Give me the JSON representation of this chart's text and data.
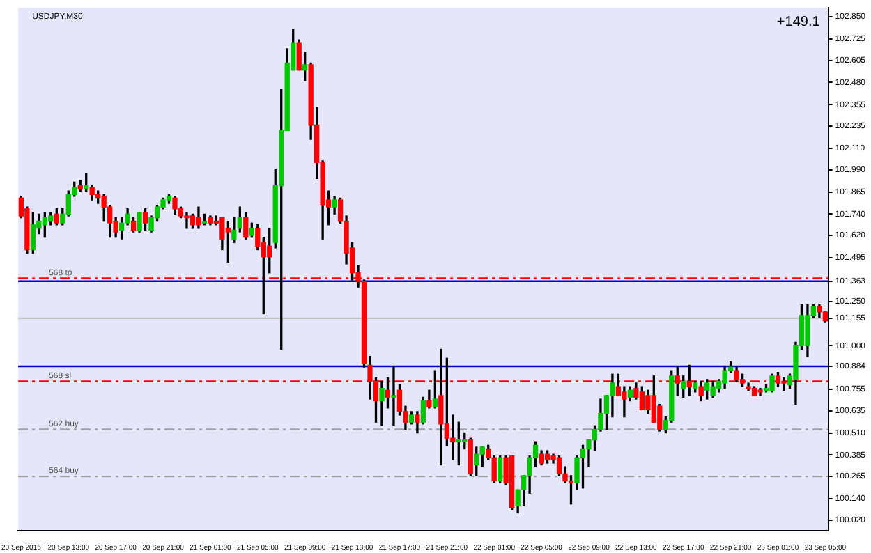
{
  "chart_data": {
    "type": "candlestick",
    "title": "USDJPY,M30",
    "annotations": [
      "+149.1"
    ],
    "categories": [
      "20 Sep 2016",
      null,
      null,
      null,
      null,
      null,
      null,
      null,
      "20 Sep 13:00",
      null,
      null,
      null,
      null,
      null,
      null,
      null,
      "20 Sep 17:00",
      null,
      null,
      null,
      null,
      null,
      null,
      null,
      "20 Sep 21:00",
      null,
      null,
      null,
      null,
      null,
      null,
      null,
      "21 Sep 01:00",
      null,
      null,
      null,
      null,
      null,
      null,
      null,
      "21 Sep 05:00",
      null,
      null,
      null,
      null,
      null,
      null,
      null,
      "21 Sep 09:00",
      null,
      null,
      null,
      null,
      null,
      null,
      null,
      "21 Sep 13:00",
      null,
      null,
      null,
      null,
      null,
      null,
      null,
      "21 Sep 17:00",
      null,
      null,
      null,
      null,
      null,
      null,
      null,
      "21 Sep 21:00",
      null,
      null,
      null,
      null,
      null,
      null,
      null,
      "22 Sep 01:00",
      null,
      null,
      null,
      null,
      null,
      null,
      null,
      "22 Sep 05:00",
      null,
      null,
      null,
      null,
      null,
      null,
      null,
      "22 Sep 09:00",
      null,
      null,
      null,
      null,
      null,
      null,
      null,
      "22 Sep 13:00",
      null,
      null,
      null,
      null,
      null,
      null,
      null,
      "22 Sep 17:00",
      null,
      null,
      null,
      null,
      null,
      null,
      null,
      "22 Sep 21:00",
      null,
      null,
      null,
      null,
      null,
      null,
      null,
      "23 Sep 01:00",
      null,
      null,
      null,
      null,
      null,
      null,
      null,
      "23 Sep 05:00"
    ],
    "ohlc": [
      [
        101.83,
        101.84,
        101.72,
        101.73
      ],
      [
        101.77,
        101.78,
        101.52,
        101.54
      ],
      [
        101.54,
        101.75,
        101.52,
        101.68
      ],
      [
        101.66,
        101.74,
        101.63,
        101.7
      ],
      [
        101.68,
        101.75,
        101.61,
        101.72
      ],
      [
        101.7,
        101.75,
        101.68,
        101.73
      ],
      [
        101.74,
        101.77,
        101.68,
        101.69
      ],
      [
        101.69,
        101.77,
        101.68,
        101.74
      ],
      [
        101.74,
        101.87,
        101.73,
        101.85
      ],
      [
        101.85,
        101.92,
        101.84,
        101.89
      ],
      [
        101.9,
        101.93,
        101.87,
        101.88
      ],
      [
        101.88,
        101.97,
        101.87,
        101.9
      ],
      [
        101.89,
        101.9,
        101.82,
        101.85
      ],
      [
        101.85,
        101.87,
        101.8,
        101.83
      ],
      [
        101.84,
        101.85,
        101.7,
        101.78
      ],
      [
        101.78,
        101.79,
        101.61,
        101.69
      ],
      [
        101.7,
        101.72,
        101.61,
        101.64
      ],
      [
        101.65,
        101.72,
        101.6,
        101.69
      ],
      [
        101.69,
        101.77,
        101.68,
        101.74
      ],
      [
        101.7,
        101.72,
        101.64,
        101.65
      ],
      [
        101.65,
        101.75,
        101.64,
        101.75
      ],
      [
        101.75,
        101.77,
        101.65,
        101.69
      ],
      [
        101.65,
        101.73,
        101.64,
        101.72
      ],
      [
        101.72,
        101.79,
        101.7,
        101.78
      ],
      [
        101.78,
        101.83,
        101.77,
        101.82
      ],
      [
        101.82,
        101.85,
        101.8,
        101.84
      ],
      [
        101.83,
        101.84,
        101.74,
        101.77
      ],
      [
        101.77,
        101.78,
        101.72,
        101.73
      ],
      [
        101.73,
        101.75,
        101.66,
        101.72
      ],
      [
        101.73,
        101.74,
        101.66,
        101.68
      ],
      [
        101.72,
        101.78,
        101.66,
        101.68
      ],
      [
        101.69,
        101.74,
        101.68,
        101.7
      ],
      [
        101.72,
        101.73,
        101.68,
        101.69
      ],
      [
        101.7,
        101.73,
        101.68,
        101.69
      ],
      [
        101.72,
        101.72,
        101.54,
        101.6
      ],
      [
        101.66,
        101.7,
        101.47,
        101.64
      ],
      [
        101.6,
        101.72,
        101.58,
        101.65
      ],
      [
        101.66,
        101.78,
        101.64,
        101.72
      ],
      [
        101.72,
        101.75,
        101.6,
        101.61
      ],
      [
        101.62,
        101.69,
        101.61,
        101.66
      ],
      [
        101.66,
        101.68,
        101.54,
        101.56
      ],
      [
        101.58,
        101.61,
        101.18,
        101.5
      ],
      [
        101.56,
        101.66,
        101.41,
        101.5
      ],
      [
        101.58,
        101.99,
        101.55,
        101.9
      ],
      [
        101.9,
        102.44,
        100.98,
        102.21
      ],
      [
        102.21,
        102.67,
        102.21,
        102.59
      ],
      [
        102.55,
        102.78,
        102.55,
        102.7
      ],
      [
        102.7,
        102.72,
        102.55,
        102.55
      ],
      [
        102.55,
        102.65,
        102.49,
        102.58
      ],
      [
        102.58,
        102.59,
        102.16,
        102.24
      ],
      [
        102.24,
        102.34,
        101.94,
        102.03
      ],
      [
        102.03,
        102.04,
        101.6,
        101.79
      ],
      [
        101.82,
        101.87,
        101.68,
        101.78
      ],
      [
        101.78,
        101.84,
        101.74,
        101.82
      ],
      [
        101.82,
        101.83,
        101.69,
        101.7
      ],
      [
        101.7,
        101.73,
        101.46,
        101.52
      ],
      [
        101.55,
        101.58,
        101.37,
        101.41
      ],
      [
        101.41,
        101.45,
        101.33,
        101.36
      ],
      [
        101.36,
        101.37,
        100.88,
        100.9
      ],
      [
        100.89,
        100.94,
        100.7,
        100.8
      ],
      [
        100.8,
        100.82,
        100.57,
        100.69
      ],
      [
        100.69,
        100.8,
        100.55,
        100.76
      ],
      [
        100.75,
        100.82,
        100.65,
        100.71
      ],
      [
        100.71,
        100.88,
        100.55,
        100.72
      ],
      [
        100.75,
        100.78,
        100.61,
        100.63
      ],
      [
        100.63,
        100.66,
        100.53,
        100.57
      ],
      [
        100.57,
        100.63,
        100.56,
        100.61
      ],
      [
        100.61,
        100.63,
        100.51,
        100.57
      ],
      [
        100.57,
        100.71,
        100.56,
        100.69
      ],
      [
        100.69,
        100.75,
        100.65,
        100.66
      ],
      [
        100.66,
        100.86,
        100.65,
        100.7
      ],
      [
        100.72,
        100.98,
        100.33,
        100.56
      ],
      [
        100.56,
        100.93,
        100.44,
        100.48
      ],
      [
        100.48,
        100.61,
        100.36,
        100.46
      ],
      [
        100.46,
        100.57,
        100.33,
        100.47
      ],
      [
        100.46,
        100.51,
        100.42,
        100.47
      ],
      [
        100.47,
        100.48,
        100.27,
        100.28
      ],
      [
        100.33,
        100.43,
        100.27,
        100.39
      ],
      [
        100.39,
        100.43,
        100.32,
        100.43
      ],
      [
        100.42,
        100.44,
        100.36,
        100.37
      ],
      [
        100.37,
        100.38,
        100.23,
        100.24
      ],
      [
        100.24,
        100.38,
        100.23,
        100.37
      ],
      [
        100.37,
        100.38,
        100.22,
        100.23
      ],
      [
        100.38,
        100.38,
        100.08,
        100.09
      ],
      [
        100.1,
        100.19,
        100.06,
        100.19
      ],
      [
        100.19,
        100.27,
        100.1,
        100.27
      ],
      [
        100.27,
        100.38,
        100.17,
        100.37
      ],
      [
        100.37,
        100.46,
        100.32,
        100.44
      ],
      [
        100.39,
        100.41,
        100.33,
        100.34
      ],
      [
        100.39,
        100.41,
        100.34,
        100.36
      ],
      [
        100.38,
        100.39,
        100.34,
        100.36
      ],
      [
        100.37,
        100.38,
        100.27,
        100.28
      ],
      [
        100.28,
        100.32,
        100.23,
        100.24
      ],
      [
        100.24,
        100.27,
        100.11,
        100.23
      ],
      [
        100.23,
        100.38,
        100.19,
        100.37
      ],
      [
        100.37,
        100.44,
        100.2,
        100.42
      ],
      [
        100.42,
        100.47,
        100.32,
        100.47
      ],
      [
        100.47,
        100.55,
        100.41,
        100.53
      ],
      [
        100.53,
        100.7,
        100.52,
        100.62
      ],
      [
        100.62,
        100.72,
        100.53,
        100.72
      ],
      [
        100.72,
        100.84,
        100.6,
        100.79
      ],
      [
        100.77,
        100.84,
        100.72,
        100.72
      ],
      [
        100.74,
        100.77,
        100.6,
        100.7
      ],
      [
        100.71,
        100.77,
        100.69,
        100.75
      ],
      [
        100.76,
        100.79,
        100.7,
        100.71
      ],
      [
        100.74,
        100.77,
        100.64,
        100.64
      ],
      [
        100.72,
        100.75,
        100.62,
        100.64
      ],
      [
        100.72,
        100.83,
        100.57,
        100.57
      ],
      [
        100.66,
        100.67,
        100.52,
        100.53
      ],
      [
        100.53,
        100.6,
        100.51,
        100.58
      ],
      [
        100.58,
        100.86,
        100.57,
        100.83
      ],
      [
        100.83,
        100.88,
        100.72,
        100.79
      ],
      [
        100.76,
        100.83,
        100.71,
        100.8
      ],
      [
        100.8,
        100.89,
        100.72,
        100.77
      ],
      [
        100.76,
        100.8,
        100.74,
        100.79
      ],
      [
        100.77,
        100.8,
        100.69,
        100.72
      ],
      [
        100.75,
        100.81,
        100.7,
        100.79
      ],
      [
        100.72,
        100.8,
        100.71,
        100.77
      ],
      [
        100.76,
        100.81,
        100.74,
        100.8
      ],
      [
        100.79,
        100.88,
        100.76,
        100.86
      ],
      [
        100.86,
        100.91,
        100.85,
        100.88
      ],
      [
        100.86,
        100.88,
        100.8,
        100.81
      ],
      [
        100.81,
        100.84,
        100.77,
        100.79
      ],
      [
        100.77,
        100.79,
        100.75,
        100.76
      ],
      [
        100.76,
        100.77,
        100.72,
        100.72
      ],
      [
        100.75,
        100.76,
        100.72,
        100.74
      ],
      [
        100.75,
        100.78,
        100.74,
        100.76
      ],
      [
        100.75,
        100.84,
        100.74,
        100.83
      ],
      [
        100.83,
        100.85,
        100.77,
        100.79
      ],
      [
        100.8,
        100.82,
        100.75,
        100.79
      ],
      [
        100.78,
        100.84,
        100.76,
        100.83
      ],
      [
        100.81,
        101.02,
        100.67,
        101.0
      ],
      [
        101.0,
        101.23,
        100.98,
        101.17
      ],
      [
        101.0,
        101.23,
        100.94,
        101.17
      ],
      [
        101.17,
        101.23,
        101.16,
        101.22
      ],
      [
        101.22,
        101.23,
        101.16,
        101.19
      ],
      [
        101.19,
        101.19,
        101.13,
        101.14
      ]
    ],
    "colors": [
      "#ff0000",
      "#ff0000",
      "#00c800",
      "#00c800",
      "#00c800",
      "#00c800",
      "#ff0000",
      "#00c800",
      "#00c800",
      "#00c800",
      "#ff0000",
      "#00c800",
      "#ff0000",
      "#ff0000",
      "#ff0000",
      "#ff0000",
      "#ff0000",
      "#00c800",
      "#00c800",
      "#ff0000",
      "#00c800",
      "#ff0000",
      "#00c800",
      "#00c800",
      "#00c800",
      "#00c800",
      "#ff0000",
      "#ff0000",
      "#ff0000",
      "#ff0000",
      "#ff0000",
      "#00c800",
      "#ff0000",
      "#ff0000",
      "#ff0000",
      "#ff0000",
      "#00c800",
      "#00c800",
      "#ff0000",
      "#00c800",
      "#ff0000",
      "#ff0000",
      "#ff0000",
      "#00c800",
      "#00c800",
      "#00c800",
      "#00c800",
      "#ff0000",
      "#00c800",
      "#ff0000",
      "#ff0000",
      "#ff0000",
      "#ff0000",
      "#00c800",
      "#ff0000",
      "#ff0000",
      "#ff0000",
      "#ff0000",
      "#ff0000",
      "#ff0000",
      "#ff0000",
      "#00c800",
      "#ff0000",
      "#00c800",
      "#ff0000",
      "#ff0000",
      "#00c800",
      "#ff0000",
      "#00c800",
      "#ff0000",
      "#00c800",
      "#ff0000",
      "#ff0000",
      "#ff0000",
      "#00c800",
      "#00c800",
      "#ff0000",
      "#00c800",
      "#00c800",
      "#ff0000",
      "#ff0000",
      "#00c800",
      "#ff0000",
      "#ff0000",
      "#00c800",
      "#00c800",
      "#00c800",
      "#00c800",
      "#ff0000",
      "#ff0000",
      "#ff0000",
      "#ff0000",
      "#ff0000",
      "#ff0000",
      "#00c800",
      "#00c800",
      "#00c800",
      "#00c800",
      "#00c800",
      "#00c800",
      "#00c800",
      "#ff0000",
      "#ff0000",
      "#00c800",
      "#ff0000",
      "#ff0000",
      "#ff0000",
      "#ff0000",
      "#ff0000",
      "#00c800",
      "#00c800",
      "#ff0000",
      "#00c800",
      "#ff0000",
      "#00c800",
      "#ff0000",
      "#00c800",
      "#00c800",
      "#00c800",
      "#00c800",
      "#00c800",
      "#ff0000",
      "#ff0000",
      "#ff0000",
      "#ff0000",
      "#ff0000",
      "#00c800",
      "#00c800",
      "#ff0000",
      "#ff0000",
      "#00c800",
      "#00c800",
      "#00c800",
      "#00c800",
      "#00c800",
      "#ff0000",
      "#ff0000"
    ],
    "ylim": [
      99.96,
      102.9
    ],
    "yticks": [
      {
        "value": 102.85,
        "label": "102.850"
      },
      {
        "value": 102.725,
        "label": "102.725"
      },
      {
        "value": 102.605,
        "label": "102.605"
      },
      {
        "value": 102.48,
        "label": "102.480"
      },
      {
        "value": 102.355,
        "label": "102.355"
      },
      {
        "value": 102.235,
        "label": "102.235"
      },
      {
        "value": 102.11,
        "label": "102.110"
      },
      {
        "value": 101.99,
        "label": "101.990"
      },
      {
        "value": 101.865,
        "label": "101.865"
      },
      {
        "value": 101.74,
        "label": "101.740"
      },
      {
        "value": 101.62,
        "label": "101.620"
      },
      {
        "value": 101.495,
        "label": "101.495"
      },
      {
        "value": 101.363,
        "label": "101.363"
      },
      {
        "value": 101.25,
        "label": "101.250"
      },
      {
        "value": 101.155,
        "label": "101.155"
      },
      {
        "value": 101.0,
        "label": "101.000"
      },
      {
        "value": 100.884,
        "label": "100.884"
      },
      {
        "value": 100.755,
        "label": "100.755"
      },
      {
        "value": 100.635,
        "label": "100.635"
      },
      {
        "value": 100.51,
        "label": "100.510"
      },
      {
        "value": 100.385,
        "label": "100.385"
      },
      {
        "value": 100.265,
        "label": "100.265"
      },
      {
        "value": 100.14,
        "label": "100.140"
      },
      {
        "value": 100.02,
        "label": "100.020"
      }
    ],
    "ref_lines": [
      {
        "axis": "y",
        "value": 101.363,
        "color": "#0000cc",
        "line_style": "solid"
      },
      {
        "axis": "y",
        "value": 101.38,
        "label": "568 tp",
        "color": "#ff0000",
        "line_style": "dashed"
      },
      {
        "axis": "y",
        "value": 101.155,
        "color": "#c0c0c0",
        "line_style": "solid"
      },
      {
        "axis": "y",
        "value": 100.884,
        "color": "#0000cc",
        "line_style": "solid"
      },
      {
        "axis": "y",
        "value": 100.8,
        "label": "568 sl",
        "color": "#ff0000",
        "line_style": "dashed"
      },
      {
        "axis": "y",
        "value": 100.53,
        "label": "562 buy",
        "color": "#a0a0a0",
        "line_style": "dashed"
      },
      {
        "axis": "y",
        "value": 100.265,
        "label": "564 buy",
        "color": "#a0a0a0",
        "line_style": "dashed"
      }
    ],
    "grid": false,
    "legend": false
  }
}
